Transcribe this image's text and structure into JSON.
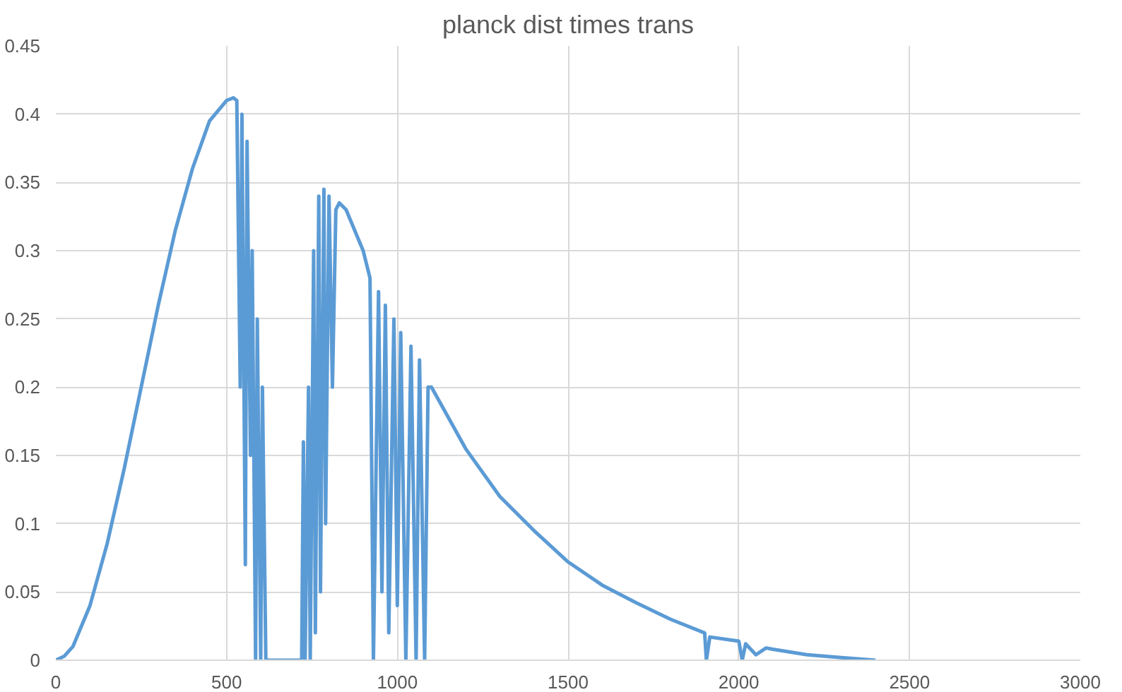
{
  "chart_data": {
    "type": "line",
    "title": "planck dist times trans",
    "x": [
      0,
      25,
      50,
      100,
      150,
      200,
      250,
      300,
      350,
      400,
      450,
      500,
      520,
      530,
      540,
      545,
      555,
      560,
      570,
      575,
      585,
      590,
      600,
      605,
      615,
      620,
      700,
      720,
      725,
      730,
      740,
      745,
      755,
      760,
      770,
      775,
      785,
      790,
      800,
      810,
      820,
      830,
      850,
      900,
      920,
      930,
      945,
      955,
      965,
      975,
      990,
      1000,
      1010,
      1025,
      1040,
      1055,
      1065,
      1080,
      1090,
      1100,
      1200,
      1300,
      1400,
      1500,
      1600,
      1700,
      1800,
      1900,
      1905,
      1915,
      2000,
      2010,
      2020,
      2050,
      2080,
      2100,
      2200,
      2300,
      2400
    ],
    "series": [
      {
        "color": "#5b9bd5",
        "values": [
          0,
          0.003,
          0.01,
          0.04,
          0.085,
          0.14,
          0.2,
          0.26,
          0.315,
          0.36,
          0.395,
          0.41,
          0.412,
          0.41,
          0.2,
          0.4,
          0.07,
          0.38,
          0.15,
          0.3,
          0,
          0.25,
          0,
          0.2,
          0,
          0,
          0,
          0,
          0.16,
          0,
          0.2,
          0,
          0.3,
          0.02,
          0.34,
          0.05,
          0.345,
          0.1,
          0.34,
          0.2,
          0.33,
          0.335,
          0.33,
          0.3,
          0.28,
          0,
          0.27,
          0.05,
          0.26,
          0.02,
          0.25,
          0.04,
          0.24,
          0,
          0.23,
          0,
          0.22,
          0,
          0.2,
          0.2,
          0.155,
          0.12,
          0.095,
          0.072,
          0.055,
          0.042,
          0.03,
          0.02,
          0,
          0.017,
          0.014,
          0,
          0.012,
          0.004,
          0.009,
          0.008,
          0.004,
          0.002,
          0
        ]
      }
    ],
    "xlim": [
      0,
      3000
    ],
    "xticks": [
      0,
      500,
      1000,
      1500,
      2000,
      2500,
      3000
    ],
    "ylim": [
      0,
      0.45
    ],
    "yticks": [
      0,
      0.05,
      0.1,
      0.15,
      0.2,
      0.25,
      0.3,
      0.35,
      0.4,
      0.45
    ],
    "grid": true,
    "marker": "none",
    "line_style": "solid"
  }
}
